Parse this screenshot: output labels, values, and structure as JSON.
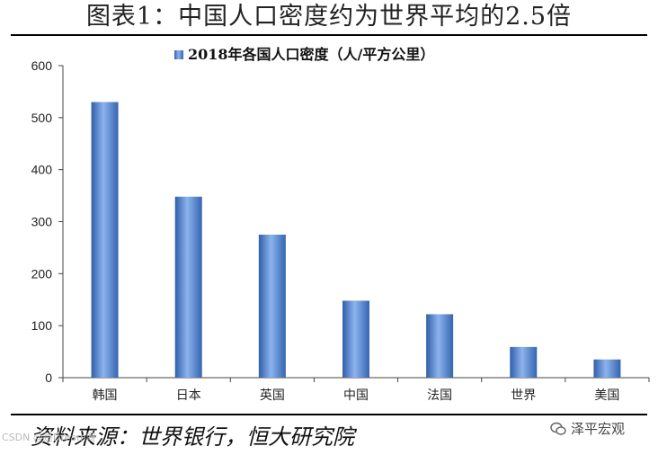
{
  "header": {
    "title": "图表1：中国人口密度约为世界平均的2.5倍"
  },
  "footer": {
    "source": "资料来源：世界银行，恒大研究院",
    "watermark": "CSDN @是Dream呀",
    "brand": "泽平宏观",
    "brand_icon": "wechat-icon"
  },
  "chart_data": {
    "type": "bar",
    "legend": {
      "label": "2018年各国人口密度（人/平方公里）",
      "position": "top-center"
    },
    "categories": [
      "韩国",
      "日本",
      "英国",
      "中国",
      "法国",
      "世界",
      "美国"
    ],
    "values": [
      530,
      348,
      275,
      148,
      122,
      59,
      35
    ],
    "ylim": [
      0,
      600
    ],
    "yticks": [
      0,
      100,
      200,
      300,
      400,
      500,
      600
    ],
    "grid": false,
    "bar_color": "#4F7FC8"
  }
}
